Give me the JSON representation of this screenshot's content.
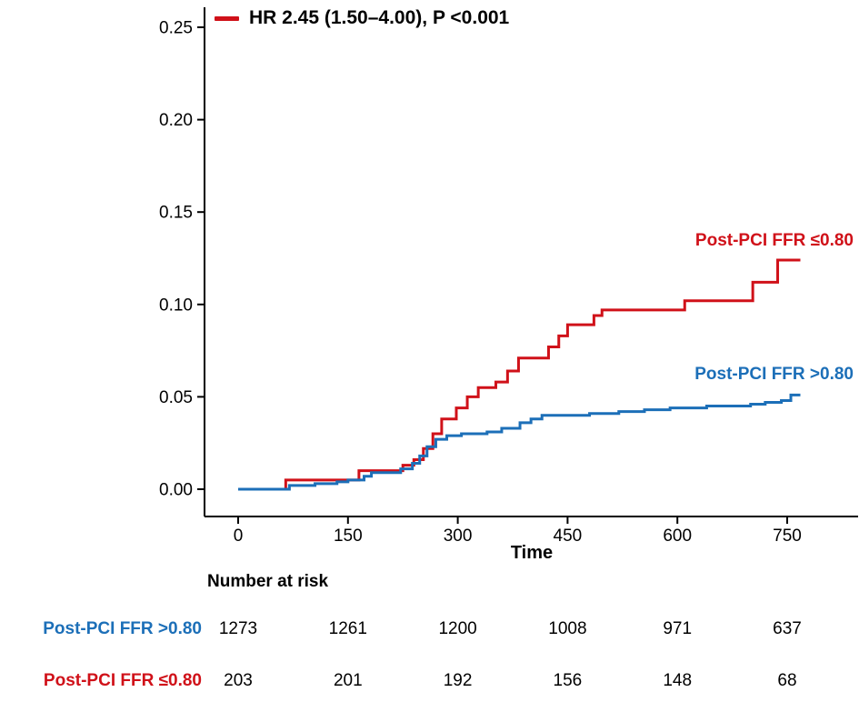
{
  "annotation": {
    "text": "HR 2.45 (1.50–4.00), P <0.001",
    "marker_color": "#d01119"
  },
  "chart_data": {
    "type": "line",
    "subtype": "kaplan-meier-cumulative-incidence-step",
    "title": "",
    "xlabel": "Time",
    "ylabel": "",
    "xlim": [
      0,
      780
    ],
    "ylim": [
      0,
      0.25
    ],
    "x_ticks": [
      0,
      150,
      300,
      450,
      600,
      750
    ],
    "y_ticks": [
      0,
      0.05,
      0.1,
      0.15,
      0.2,
      0.25
    ],
    "y_tick_labels": [
      "0.00",
      "0.05",
      "0.10",
      "0.15",
      "0.20",
      "0.25"
    ],
    "grid": false,
    "legend_position": "top-left-inside",
    "series": [
      {
        "name": "Post-PCI FFR ≤0.80",
        "slug": "ffr-le-080",
        "color": "#d01119",
        "end_time": 768,
        "points": [
          [
            0,
            0
          ],
          [
            65,
            0.005
          ],
          [
            165,
            0.01
          ],
          [
            225,
            0.013
          ],
          [
            240,
            0.016
          ],
          [
            253,
            0.022
          ],
          [
            266,
            0.03
          ],
          [
            278,
            0.038
          ],
          [
            298,
            0.044
          ],
          [
            313,
            0.05
          ],
          [
            328,
            0.055
          ],
          [
            352,
            0.058
          ],
          [
            368,
            0.064
          ],
          [
            383,
            0.071
          ],
          [
            424,
            0.077
          ],
          [
            438,
            0.083
          ],
          [
            450,
            0.089
          ],
          [
            486,
            0.094
          ],
          [
            497,
            0.097
          ],
          [
            610,
            0.102
          ],
          [
            703,
            0.112
          ],
          [
            737,
            0.124
          ]
        ]
      },
      {
        "name": "Post-PCI FFR >0.80",
        "slug": "ffr-gt-080",
        "color": "#1c6fb8",
        "end_time": 768,
        "points": [
          [
            0,
            0
          ],
          [
            70,
            0.002
          ],
          [
            105,
            0.003
          ],
          [
            135,
            0.004
          ],
          [
            150,
            0.005
          ],
          [
            172,
            0.007
          ],
          [
            182,
            0.009
          ],
          [
            222,
            0.011
          ],
          [
            238,
            0.014
          ],
          [
            248,
            0.018
          ],
          [
            258,
            0.023
          ],
          [
            270,
            0.027
          ],
          [
            285,
            0.029
          ],
          [
            305,
            0.03
          ],
          [
            340,
            0.031
          ],
          [
            360,
            0.033
          ],
          [
            385,
            0.036
          ],
          [
            400,
            0.038
          ],
          [
            415,
            0.04
          ],
          [
            480,
            0.041
          ],
          [
            520,
            0.042
          ],
          [
            555,
            0.043
          ],
          [
            590,
            0.044
          ],
          [
            640,
            0.045
          ],
          [
            700,
            0.046
          ],
          [
            720,
            0.047
          ],
          [
            742,
            0.048
          ],
          [
            755,
            0.051
          ]
        ]
      }
    ]
  },
  "risk_table": {
    "header": "Number at risk",
    "time_points": [
      0,
      150,
      300,
      450,
      600,
      750
    ],
    "rows": [
      {
        "label": "Post-PCI FFR >0.80",
        "color": "#1c6fb8",
        "counts": [
          1273,
          1261,
          1200,
          1008,
          971,
          637
        ]
      },
      {
        "label": "Post-PCI FFR ≤0.80",
        "color": "#d01119",
        "counts": [
          203,
          201,
          192,
          156,
          148,
          68
        ]
      }
    ]
  }
}
